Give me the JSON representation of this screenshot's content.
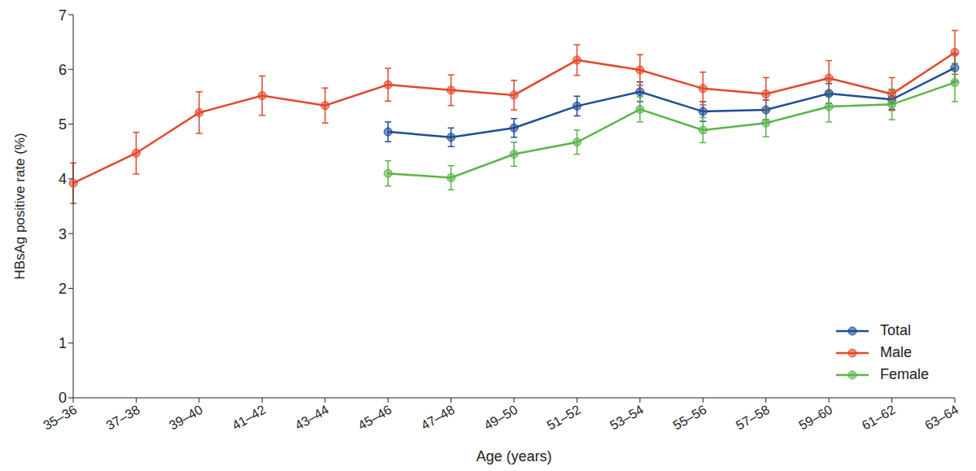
{
  "chart_data": {
    "type": "line",
    "x_label": "Age (years)",
    "y_label": "HBsAg positive rate (%)",
    "categories": [
      "35–36",
      "37–38",
      "39–40",
      "41–42",
      "43–44",
      "45–46",
      "47–48",
      "49–50",
      "51–52",
      "53–54",
      "55–56",
      "57–58",
      "59–60",
      "61–62",
      "63–64"
    ],
    "series": [
      {
        "name": "Total",
        "color": "#1f4e96",
        "marker": "circle",
        "values": [
          null,
          null,
          null,
          null,
          null,
          4.86,
          4.76,
          4.93,
          5.33,
          5.59,
          5.23,
          5.26,
          5.56,
          5.45,
          6.03
        ],
        "errors": [
          null,
          null,
          null,
          null,
          null,
          0.18,
          0.17,
          0.17,
          0.18,
          0.18,
          0.18,
          0.18,
          0.18,
          0.18,
          0.25
        ]
      },
      {
        "name": "Male",
        "color": "#e2492c",
        "marker": "circle",
        "values": [
          3.92,
          4.47,
          5.21,
          5.52,
          5.34,
          5.72,
          5.62,
          5.53,
          6.17,
          5.99,
          5.65,
          5.55,
          5.84,
          5.55,
          6.31
        ],
        "errors": [
          0.37,
          0.38,
          0.38,
          0.36,
          0.32,
          0.3,
          0.28,
          0.27,
          0.28,
          0.28,
          0.3,
          0.3,
          0.32,
          0.3,
          0.4
        ]
      },
      {
        "name": "Female",
        "color": "#5cb54a",
        "marker": "circle",
        "values": [
          null,
          null,
          null,
          null,
          null,
          4.1,
          4.02,
          4.45,
          4.67,
          5.27,
          4.89,
          5.02,
          5.32,
          5.36,
          5.76
        ],
        "errors": [
          null,
          null,
          null,
          null,
          null,
          0.23,
          0.22,
          0.22,
          0.22,
          0.23,
          0.23,
          0.25,
          0.28,
          0.28,
          0.35
        ]
      }
    ],
    "ylim": [
      0,
      7
    ],
    "yticks": [
      0,
      1,
      2,
      3,
      4,
      5,
      6,
      7
    ],
    "grid": false,
    "legend": "lower right"
  }
}
